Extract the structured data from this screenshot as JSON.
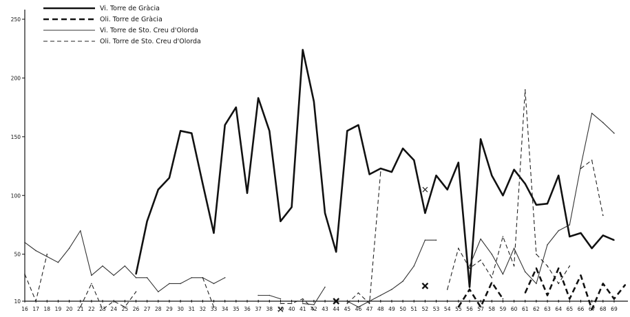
{
  "chart_data": {
    "type": "line",
    "title": "",
    "xlabel": "",
    "ylabel": "",
    "xlim": [
      16,
      69
    ],
    "ylim": [
      0,
      250
    ],
    "x_tick_labels": [
      "16",
      "17",
      "18",
      "19",
      "20",
      "21",
      "22",
      "23",
      "24",
      "25",
      "26",
      "27",
      "28",
      "29",
      "30",
      "31",
      "32",
      "33",
      "34",
      "35",
      "36",
      "37",
      "38",
      "39",
      "40",
      "41",
      "42",
      "43",
      "44",
      "45",
      "46",
      "47",
      "48",
      "49",
      "50",
      "51",
      "52",
      "53",
      "54",
      "55",
      "56",
      "57",
      "58",
      "59",
      "60",
      "61",
      "62",
      "63",
      "64",
      "65",
      "66",
      "67",
      "68",
      "69"
    ],
    "y_ticks": [
      {
        "value": 10,
        "label": "10"
      },
      {
        "value": 50,
        "label": "50"
      },
      {
        "value": 100,
        "label": "100"
      },
      {
        "value": 150,
        "label": "150"
      },
      {
        "value": 200,
        "label": "200"
      },
      {
        "value": 250,
        "label": "250"
      }
    ],
    "legend": {
      "position": "top-left",
      "entries": [
        "Vi. Torre de Gràcia",
        "Oli. Torre de Gràcia",
        "Vi. Torre de Sto. Creu d'Olorda",
        "Oli. Torre de Sto. Creu d'Olorda"
      ]
    },
    "series": [
      {
        "name": "Vi. Torre de Gràcia",
        "color": "#111111",
        "style": "solid-thick",
        "points": [
          [
            26,
            33
          ],
          [
            27,
            78
          ],
          [
            28,
            105
          ],
          [
            29,
            115
          ],
          [
            30,
            155
          ],
          [
            31,
            153
          ],
          [
            32,
            110
          ],
          [
            33,
            68
          ],
          [
            34,
            160
          ],
          [
            35,
            175
          ],
          [
            36,
            102
          ],
          [
            37,
            183
          ],
          [
            38,
            155
          ],
          [
            39,
            78
          ],
          [
            40,
            90
          ],
          [
            41,
            224
          ],
          [
            42,
            180
          ],
          [
            43,
            85
          ],
          [
            44,
            52
          ],
          [
            45,
            155
          ],
          [
            46,
            160
          ],
          [
            47,
            118
          ],
          [
            48,
            123
          ],
          [
            49,
            120
          ],
          [
            50,
            140
          ],
          [
            51,
            130
          ],
          [
            52,
            85
          ],
          [
            53,
            117
          ],
          [
            54,
            105
          ],
          [
            55,
            128
          ],
          [
            56,
            22
          ],
          [
            57,
            148
          ],
          [
            58,
            117
          ],
          [
            59,
            100
          ],
          [
            60,
            122
          ],
          [
            61,
            110
          ],
          [
            62,
            92
          ],
          [
            63,
            93
          ],
          [
            64,
            117
          ],
          [
            65,
            65
          ],
          [
            66,
            68
          ],
          [
            67,
            55
          ],
          [
            68,
            66
          ],
          [
            69,
            62
          ]
        ]
      },
      {
        "name": "Oli. Torre de Gràcia",
        "color": "#111111",
        "style": "dashed-thick",
        "segments": [
          [
            [
              55,
              5
            ],
            [
              56,
              20
            ],
            [
              57,
              5
            ],
            [
              58,
              26
            ],
            [
              59,
              12
            ]
          ],
          [
            [
              61,
              17
            ],
            [
              62,
              38
            ],
            [
              63,
              15
            ],
            [
              64,
              38
            ],
            [
              65,
              12
            ],
            [
              66,
              32
            ],
            [
              67,
              3
            ],
            [
              68,
              25
            ],
            [
              69,
              12
            ],
            [
              70,
              24
            ]
          ]
        ],
        "markers": [
          [
            44,
            10
          ],
          [
            52,
            23
          ]
        ]
      },
      {
        "name": "Vi. Torre de Sto. Creu d'Olorda",
        "color": "#333333",
        "style": "solid-thin",
        "segments": [
          [
            [
              16,
              60
            ],
            [
              17,
              53
            ],
            [
              18,
              48
            ],
            [
              19,
              43
            ],
            [
              20,
              55
            ],
            [
              21,
              70
            ],
            [
              22,
              32
            ],
            [
              23,
              40
            ],
            [
              24,
              32
            ],
            [
              25,
              40
            ],
            [
              26,
              30
            ],
            [
              27,
              30
            ],
            [
              28,
              18
            ],
            [
              29,
              25
            ],
            [
              30,
              25
            ],
            [
              31,
              30
            ],
            [
              32,
              30
            ],
            [
              33,
              25
            ],
            [
              34,
              30
            ]
          ],
          [
            [
              37,
              15
            ],
            [
              38,
              15
            ],
            [
              39,
              12
            ]
          ],
          [
            [
              41,
              8
            ],
            [
              42,
              7
            ],
            [
              43,
              22
            ]
          ],
          [
            [
              45,
              10
            ],
            [
              46,
              5
            ],
            [
              47,
              10
            ],
            [
              48,
              15
            ],
            [
              49,
              20
            ],
            [
              50,
              27
            ],
            [
              51,
              40
            ],
            [
              52,
              62
            ],
            [
              53,
              62
            ]
          ],
          [
            [
              56,
              40
            ],
            [
              57,
              63
            ],
            [
              58,
              50
            ],
            [
              59,
              33
            ],
            [
              60,
              55
            ],
            [
              61,
              35
            ],
            [
              62,
              25
            ],
            [
              63,
              58
            ],
            [
              64,
              70
            ],
            [
              65,
              75
            ],
            [
              66,
              125
            ],
            [
              67,
              170
            ],
            [
              68,
              162
            ],
            [
              69,
              153
            ]
          ]
        ]
      },
      {
        "name": "Oli. Torre de Sto. Creu d'Olorda",
        "color": "#222222",
        "style": "dashed-thin",
        "segments": [
          [
            [
              16,
              33
            ],
            [
              17,
              10
            ],
            [
              18,
              50
            ]
          ],
          [
            [
              21,
              5
            ],
            [
              22,
              25
            ],
            [
              23,
              3
            ],
            [
              24,
              10
            ],
            [
              25,
              5
            ],
            [
              26,
              18
            ]
          ],
          [
            [
              32,
              30
            ],
            [
              33,
              5
            ]
          ],
          [
            [
              39,
              8
            ],
            [
              40,
              8
            ],
            [
              41,
              12
            ],
            [
              42,
              3
            ]
          ],
          [
            [
              45,
              8
            ],
            [
              46,
              17
            ],
            [
              47,
              8
            ],
            [
              48,
              120
            ]
          ],
          [
            [
              54,
              20
            ],
            [
              55,
              55
            ],
            [
              56,
              38
            ],
            [
              57,
              45
            ],
            [
              58,
              30
            ],
            [
              59,
              65
            ],
            [
              60,
              40
            ],
            [
              61,
              190
            ],
            [
              62,
              50
            ],
            [
              63,
              40
            ],
            [
              64,
              25
            ],
            [
              65,
              40
            ]
          ],
          [
            [
              66,
              123
            ],
            [
              67,
              130
            ],
            [
              68,
              83
            ]
          ]
        ],
        "markers": [
          [
            39,
            3
          ],
          [
            52,
            105
          ]
        ]
      }
    ]
  }
}
